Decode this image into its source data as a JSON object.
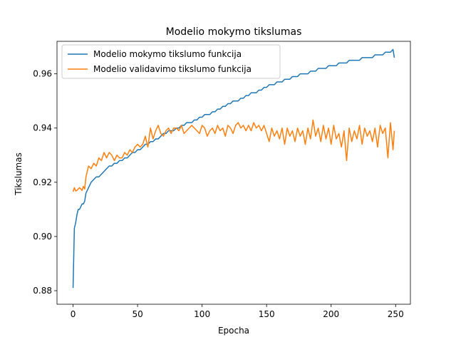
{
  "chart_data": {
    "type": "line",
    "title": "Modelio mokymo tikslumas",
    "xlabel": "Epocha",
    "ylabel": "Tikslumas",
    "xlim": [
      -12.45,
      261.45
    ],
    "ylim": [
      0.875,
      0.972
    ],
    "xticks": [
      0,
      50,
      100,
      150,
      200,
      250
    ],
    "yticks": [
      0.88,
      0.9,
      0.92,
      0.94,
      0.96
    ],
    "ytick_labels": [
      "0.88",
      "0.90",
      "0.92",
      "0.94",
      "0.96"
    ],
    "legend_position": "upper-left",
    "grid": false,
    "series": [
      {
        "name": "Modelio mokymo tikslumo funkcija",
        "color": "#1f77b4",
        "x": [
          0,
          1,
          2,
          3,
          4,
          5,
          6,
          7,
          8,
          9,
          10,
          12,
          14,
          16,
          18,
          20,
          22,
          24,
          26,
          28,
          30,
          32,
          34,
          36,
          38,
          40,
          42,
          44,
          46,
          48,
          50,
          52,
          54,
          56,
          58,
          60,
          62,
          64,
          66,
          68,
          70,
          72,
          74,
          76,
          78,
          80,
          82,
          84,
          86,
          88,
          90,
          92,
          94,
          96,
          98,
          100,
          102,
          104,
          106,
          108,
          110,
          112,
          114,
          116,
          118,
          120,
          122,
          124,
          126,
          128,
          130,
          132,
          134,
          136,
          138,
          140,
          142,
          144,
          146,
          148,
          150,
          152,
          154,
          156,
          158,
          160,
          162,
          164,
          166,
          168,
          170,
          172,
          174,
          176,
          178,
          180,
          182,
          184,
          186,
          188,
          190,
          192,
          194,
          196,
          198,
          200,
          202,
          204,
          206,
          208,
          210,
          212,
          214,
          216,
          218,
          220,
          222,
          224,
          226,
          228,
          230,
          232,
          234,
          236,
          238,
          240,
          242,
          244,
          246,
          248,
          249
        ],
        "y": [
          0.881,
          0.903,
          0.905,
          0.908,
          0.91,
          0.91,
          0.911,
          0.912,
          0.912,
          0.913,
          0.916,
          0.918,
          0.92,
          0.921,
          0.922,
          0.922,
          0.923,
          0.924,
          0.925,
          0.926,
          0.926,
          0.927,
          0.927,
          0.928,
          0.928,
          0.929,
          0.929,
          0.93,
          0.931,
          0.931,
          0.932,
          0.932,
          0.933,
          0.934,
          0.934,
          0.935,
          0.935,
          0.936,
          0.936,
          0.937,
          0.938,
          0.938,
          0.939,
          0.939,
          0.939,
          0.94,
          0.94,
          0.941,
          0.941,
          0.942,
          0.942,
          0.942,
          0.943,
          0.943,
          0.944,
          0.944,
          0.945,
          0.945,
          0.945,
          0.946,
          0.946,
          0.947,
          0.947,
          0.948,
          0.948,
          0.949,
          0.949,
          0.95,
          0.95,
          0.95,
          0.951,
          0.951,
          0.952,
          0.952,
          0.953,
          0.953,
          0.953,
          0.954,
          0.954,
          0.955,
          0.955,
          0.956,
          0.956,
          0.956,
          0.957,
          0.957,
          0.957,
          0.958,
          0.958,
          0.958,
          0.959,
          0.959,
          0.959,
          0.96,
          0.96,
          0.96,
          0.96,
          0.961,
          0.961,
          0.961,
          0.962,
          0.962,
          0.962,
          0.962,
          0.963,
          0.963,
          0.963,
          0.963,
          0.964,
          0.964,
          0.964,
          0.964,
          0.965,
          0.965,
          0.965,
          0.965,
          0.965,
          0.966,
          0.966,
          0.966,
          0.966,
          0.966,
          0.967,
          0.967,
          0.967,
          0.967,
          0.968,
          0.968,
          0.968,
          0.969,
          0.966
        ]
      },
      {
        "name": "Modelio validavimo tikslumo funkcija",
        "color": "#ff7f0e",
        "x": [
          0,
          1,
          2,
          3,
          4,
          5,
          6,
          7,
          8,
          9,
          10,
          12,
          14,
          16,
          18,
          20,
          22,
          24,
          26,
          28,
          30,
          32,
          34,
          36,
          38,
          40,
          42,
          44,
          46,
          48,
          50,
          52,
          54,
          56,
          58,
          60,
          62,
          64,
          66,
          68,
          70,
          72,
          74,
          76,
          78,
          80,
          82,
          84,
          86,
          88,
          90,
          92,
          94,
          96,
          98,
          100,
          102,
          104,
          106,
          108,
          110,
          112,
          114,
          116,
          118,
          120,
          122,
          124,
          126,
          128,
          130,
          132,
          134,
          136,
          138,
          140,
          142,
          144,
          146,
          148,
          150,
          152,
          154,
          156,
          158,
          160,
          162,
          164,
          166,
          168,
          170,
          172,
          174,
          176,
          178,
          180,
          182,
          184,
          186,
          188,
          190,
          192,
          194,
          196,
          198,
          200,
          202,
          204,
          206,
          208,
          210,
          212,
          214,
          216,
          218,
          220,
          222,
          224,
          226,
          228,
          230,
          232,
          234,
          236,
          238,
          240,
          242,
          244,
          246,
          248,
          249
        ],
        "y": [
          0.9165,
          0.918,
          0.9168,
          0.917,
          0.9175,
          0.918,
          0.9175,
          0.917,
          0.9185,
          0.9175,
          0.922,
          0.926,
          0.925,
          0.927,
          0.926,
          0.929,
          0.928,
          0.931,
          0.929,
          0.931,
          0.93,
          0.928,
          0.93,
          0.929,
          0.929,
          0.931,
          0.93,
          0.932,
          0.931,
          0.933,
          0.934,
          0.933,
          0.934,
          0.937,
          0.933,
          0.94,
          0.936,
          0.939,
          0.941,
          0.938,
          0.937,
          0.939,
          0.94,
          0.938,
          0.94,
          0.94,
          0.939,
          0.941,
          0.938,
          0.939,
          0.94,
          0.941,
          0.94,
          0.939,
          0.938,
          0.941,
          0.94,
          0.937,
          0.939,
          0.94,
          0.938,
          0.941,
          0.939,
          0.94,
          0.937,
          0.941,
          0.94,
          0.938,
          0.941,
          0.942,
          0.94,
          0.941,
          0.939,
          0.941,
          0.939,
          0.942,
          0.94,
          0.941,
          0.939,
          0.941,
          0.938,
          0.935,
          0.94,
          0.937,
          0.939,
          0.936,
          0.94,
          0.934,
          0.94,
          0.937,
          0.939,
          0.935,
          0.94,
          0.937,
          0.939,
          0.934,
          0.94,
          0.936,
          0.943,
          0.937,
          0.94,
          0.935,
          0.941,
          0.936,
          0.94,
          0.934,
          0.941,
          0.936,
          0.938,
          0.933,
          0.939,
          0.928,
          0.94,
          0.935,
          0.939,
          0.936,
          0.941,
          0.934,
          0.94,
          0.937,
          0.939,
          0.935,
          0.94,
          0.933,
          0.941,
          0.938,
          0.94,
          0.929,
          0.942,
          0.932,
          0.939
        ]
      }
    ]
  }
}
